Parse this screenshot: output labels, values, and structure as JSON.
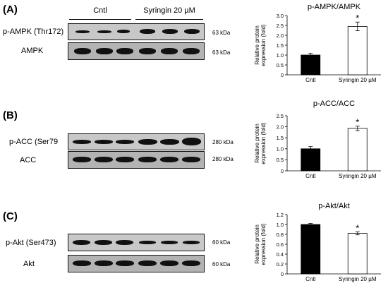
{
  "groups": {
    "control": "Cntl",
    "treated": "Syringin 20 µM"
  },
  "panels": [
    {
      "letter": "(A)",
      "blots": [
        {
          "label": "p-AMPK (Thr172)",
          "kda": "63 kDa"
        },
        {
          "label": "AMPK",
          "kda": "63 kDa"
        }
      ]
    },
    {
      "letter": "(B)",
      "blots": [
        {
          "label": "p-ACC (Ser79",
          "kda": "280 kDa"
        },
        {
          "label": "ACC",
          "kda": "280 kDa"
        }
      ]
    },
    {
      "letter": "(C)",
      "blots": [
        {
          "label": "p-Akt (Ser473)",
          "kda": "60 kDa"
        },
        {
          "label": "Akt",
          "kda": "60 kDa"
        }
      ]
    }
  ],
  "chart_data": [
    {
      "type": "bar",
      "title": "p-AMPK/AMPK",
      "categories": [
        "Cntl",
        "Syringin 20 µM"
      ],
      "values": [
        1.0,
        2.45
      ],
      "errors": [
        0.08,
        0.22
      ],
      "significance": [
        "",
        "*"
      ],
      "ylabel": "Relative protein expression (fold)",
      "ylabel_lines": [
        "Relative protein",
        "expression (fold)"
      ],
      "ylim": [
        0,
        3
      ],
      "yticks": [
        "0",
        "0.5",
        "1.0",
        "1.5",
        "2.0",
        "2.5",
        "3.0"
      ],
      "bar_colors": [
        "#000000",
        "#ffffff"
      ],
      "grid": false
    },
    {
      "type": "bar",
      "title": "p-ACC/ACC",
      "categories": [
        "Cntl",
        "Syringin 20 µM"
      ],
      "values": [
        1.0,
        1.93
      ],
      "errors": [
        0.1,
        0.1
      ],
      "significance": [
        "",
        "*"
      ],
      "ylabel": "Relative protein expression (fold)",
      "ylabel_lines": [
        "Relative protein",
        "expression (fold)"
      ],
      "ylim": [
        0,
        2.5
      ],
      "yticks": [
        "0",
        "0.5",
        "1.0",
        "1.5",
        "2.0",
        "2.5"
      ],
      "bar_colors": [
        "#000000",
        "#ffffff"
      ],
      "grid": false
    },
    {
      "type": "bar",
      "title": "p-Akt/Akt",
      "categories": [
        "Cntl",
        "Syringin 20 µM"
      ],
      "values": [
        1.0,
        0.82
      ],
      "errors": [
        0.02,
        0.03
      ],
      "significance": [
        "",
        "*"
      ],
      "ylabel": "Relative protein expression (fold)",
      "ylabel_lines": [
        "Relative protein",
        "expression (fold)"
      ],
      "ylim": [
        0,
        1.2
      ],
      "yticks": [
        "0",
        "0.2",
        "0.4",
        "0.6",
        "0.8",
        "1.0",
        "1.2"
      ],
      "bar_colors": [
        "#000000",
        "#ffffff"
      ],
      "grid": false
    }
  ]
}
